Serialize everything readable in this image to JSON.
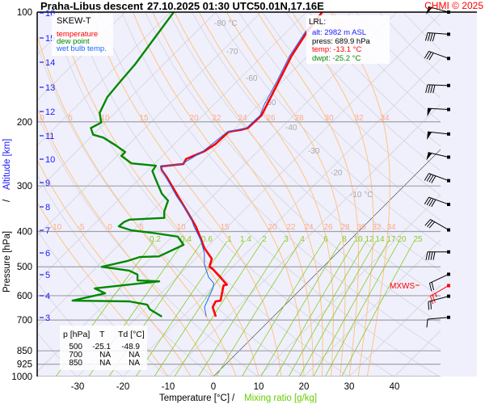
{
  "title": {
    "station": "Praha-Libus",
    "mode": "descent",
    "datetime": "27.10.2025 01:30 UTC",
    "coords": "50.01N,17.16E"
  },
  "copyright": "CHMI © 2025",
  "legend": {
    "title": "SKEW-T",
    "items": [
      {
        "label": "temperature",
        "color": "#ff0000"
      },
      {
        "label": "dew point",
        "color": "#008800"
      },
      {
        "label": "wet bulb temp.",
        "color": "#1a6aff"
      }
    ]
  },
  "lrl": {
    "title": "LRL:",
    "alt": "alt: 2982 m ASL",
    "press": "press: 689.9 hPa",
    "temp": "temp: -13.1 °C",
    "dwpt": "dwpt: -25.2 °C"
  },
  "table": {
    "headers": [
      "p [hPa]",
      "T",
      "Td [°C]"
    ],
    "rows": [
      [
        "500",
        "-25.1",
        "-48.9"
      ],
      [
        "700",
        "NA",
        "NA"
      ],
      [
        "850",
        "NA",
        "NA"
      ]
    ]
  },
  "mxws_label": "MXWS",
  "colors": {
    "background": "#f0f0fc",
    "temperature": "#ff0000",
    "dewpoint": "#008800",
    "wetbulb": "#1a6aff",
    "moist_adiabat": "#ffc480",
    "dry_adiabat": "#d4d4dc",
    "mixing_ratio": "#88cc22",
    "altitude": "#1a1aff"
  },
  "chart_data": {
    "type": "line",
    "subtype": "skew-t log-p",
    "title": "Praha-Libus descent 27.10.2025 01:30 UTC 50.01N,17.16E",
    "xlabel": "Temperature [°C]",
    "xlabel_sep": "/",
    "xlabel2": "Mixing ratio [g/kg]",
    "ylabel": "Pressure [hPa]",
    "ylabel_sep": "/",
    "ylabel2": "Altitude [km]",
    "ylim": [
      1000,
      100
    ],
    "xlim_at_1000hPa": [
      -39,
      50
    ],
    "grid": true,
    "legend_position": "top-left",
    "pressure_ticks": [
      "100",
      "200",
      "300",
      "400",
      "500",
      "600",
      "700",
      "850",
      "925",
      "1000"
    ],
    "temperature_ticks": [
      "-30",
      "-20",
      "-10",
      "0",
      "10",
      "20",
      "30",
      "40"
    ],
    "altitude_ticks": [
      "16",
      "15",
      "14",
      "13",
      "12",
      "11",
      "10",
      "9",
      "8",
      "7",
      "6",
      "5",
      "4",
      "3"
    ],
    "isotherm_labels": [
      "-80 °C",
      "-70",
      "-60",
      "-50",
      "-40",
      "-30",
      "-20",
      "-10 °C"
    ],
    "moist_adiabat_labels_200": [
      "0",
      "5",
      "10",
      "15",
      "20",
      "22",
      "24",
      "26",
      "28",
      "30",
      "32",
      "34"
    ],
    "moist_adiabat_labels_400": [
      "-10",
      "-5",
      "0",
      "5",
      "10",
      "15",
      "20",
      "22",
      "24",
      "26",
      "28",
      "30",
      "32",
      "34"
    ],
    "mixing_ratio_labels": [
      "0.2",
      "0.4",
      "0.6",
      "1",
      "1.4",
      "2",
      "3",
      "4",
      "6",
      "8",
      "10",
      "12",
      "14",
      "17",
      "20",
      "25"
    ],
    "moist_adiabats_thw": [
      -10,
      -5,
      0,
      5,
      10,
      15,
      20,
      22,
      24,
      26,
      28,
      30,
      32,
      34
    ],
    "series": [
      {
        "name": "temperature",
        "points": [
          [
            685,
            -12.7
          ],
          [
            645,
            -15.5
          ],
          [
            622,
            -16.1
          ],
          [
            619,
            -15.2
          ],
          [
            562,
            -17.9
          ],
          [
            560,
            -17.3
          ],
          [
            534,
            -20.4
          ],
          [
            507,
            -23.9
          ],
          [
            500,
            -25.1
          ],
          [
            475,
            -26.4
          ],
          [
            444,
            -30.4
          ],
          [
            413,
            -33.9
          ],
          [
            387,
            -37.1
          ],
          [
            358,
            -41.4
          ],
          [
            320,
            -47.7
          ],
          [
            285,
            -54.1
          ],
          [
            271,
            -57.1
          ],
          [
            265,
            -58.0
          ],
          [
            261,
            -53.6
          ],
          [
            253,
            -54.1
          ],
          [
            241,
            -51.8
          ],
          [
            230,
            -50.9
          ],
          [
            213,
            -50.7
          ],
          [
            210,
            -48.2
          ],
          [
            208,
            -47.3
          ],
          [
            192,
            -47.1
          ],
          [
            180,
            -48.2
          ],
          [
            154,
            -50.9
          ],
          [
            132,
            -53.6
          ],
          [
            114,
            -55.4
          ],
          [
            100,
            -56.5
          ]
        ]
      },
      {
        "name": "dew point",
        "points": [
          [
            685,
            -24.6
          ],
          [
            654,
            -28.9
          ],
          [
            635,
            -30.5
          ],
          [
            622,
            -35.2
          ],
          [
            619,
            -47.9
          ],
          [
            591,
            -42.3
          ],
          [
            573,
            -45.7
          ],
          [
            548,
            -33.0
          ],
          [
            545,
            -38.0
          ],
          [
            525,
            -39.3
          ],
          [
            512,
            -42.0
          ],
          [
            500,
            -48.9
          ],
          [
            482,
            -44.6
          ],
          [
            470,
            -42.7
          ],
          [
            468,
            -38.6
          ],
          [
            435,
            -35.7
          ],
          [
            413,
            -38.8
          ],
          [
            403,
            -45.5
          ],
          [
            397,
            -50.4
          ],
          [
            387,
            -54.1
          ],
          [
            377,
            -53.9
          ],
          [
            371,
            -53.2
          ],
          [
            367,
            -45.9
          ],
          [
            353,
            -47.3
          ],
          [
            329,
            -48.9
          ],
          [
            315,
            -51.8
          ],
          [
            289,
            -56.1
          ],
          [
            273,
            -58.9
          ],
          [
            264,
            -59.3
          ],
          [
            260,
            -65.2
          ],
          [
            248,
            -69.1
          ],
          [
            242,
            -69.1
          ],
          [
            232,
            -72.7
          ],
          [
            221,
            -77.1
          ],
          [
            217,
            -80.0
          ],
          [
            208,
            -82.0
          ],
          [
            201,
            -80.9
          ],
          [
            189,
            -83.4
          ],
          [
            171,
            -85.2
          ],
          [
            157,
            -85.7
          ],
          [
            139,
            -86.3
          ],
          [
            100,
            -89.3
          ]
        ]
      },
      {
        "name": "wet bulb temp.",
        "points": [
          [
            685,
            -14.8
          ],
          [
            645,
            -17.3
          ],
          [
            573,
            -19.6
          ],
          [
            555,
            -20.5
          ],
          [
            534,
            -23.0
          ],
          [
            492,
            -26.8
          ],
          [
            458,
            -29.3
          ],
          [
            422,
            -33.0
          ],
          [
            387,
            -37.5
          ],
          [
            362,
            -40.7
          ],
          [
            320,
            -48.0
          ],
          [
            285,
            -54.3
          ],
          [
            265,
            -58.2
          ],
          [
            261,
            -53.9
          ],
          [
            241,
            -52.1
          ],
          [
            213,
            -51.0
          ],
          [
            208,
            -47.6
          ],
          [
            192,
            -47.4
          ],
          [
            180,
            -48.8
          ],
          [
            154,
            -51.3
          ],
          [
            132,
            -54.0
          ],
          [
            114,
            -55.8
          ],
          [
            104,
            -56.5
          ]
        ]
      }
    ],
    "wind": [
      {
        "p": 100,
        "dir": 285,
        "speed": 50
      },
      {
        "p": 115,
        "dir": 274,
        "speed": 40
      },
      {
        "p": 134,
        "dir": 290,
        "speed": 30
      },
      {
        "p": 159,
        "dir": 272,
        "speed": 40
      },
      {
        "p": 185,
        "dir": 273,
        "speed": 50
      },
      {
        "p": 216,
        "dir": 276,
        "speed": 50
      },
      {
        "p": 250,
        "dir": 283,
        "speed": 50
      },
      {
        "p": 290,
        "dir": 290,
        "speed": 40
      },
      {
        "p": 337,
        "dir": 290,
        "speed": 40
      },
      {
        "p": 396,
        "dir": 300,
        "speed": 30
      },
      {
        "p": 455,
        "dir": 270,
        "speed": 40
      },
      {
        "p": 524,
        "dir": 245,
        "speed": 20
      },
      {
        "p": 563,
        "dir": 240,
        "speed": 25,
        "mxws": true
      },
      {
        "p": 602,
        "dir": 255,
        "speed": 20
      },
      {
        "p": 688,
        "dir": 265,
        "speed": 10
      }
    ]
  }
}
